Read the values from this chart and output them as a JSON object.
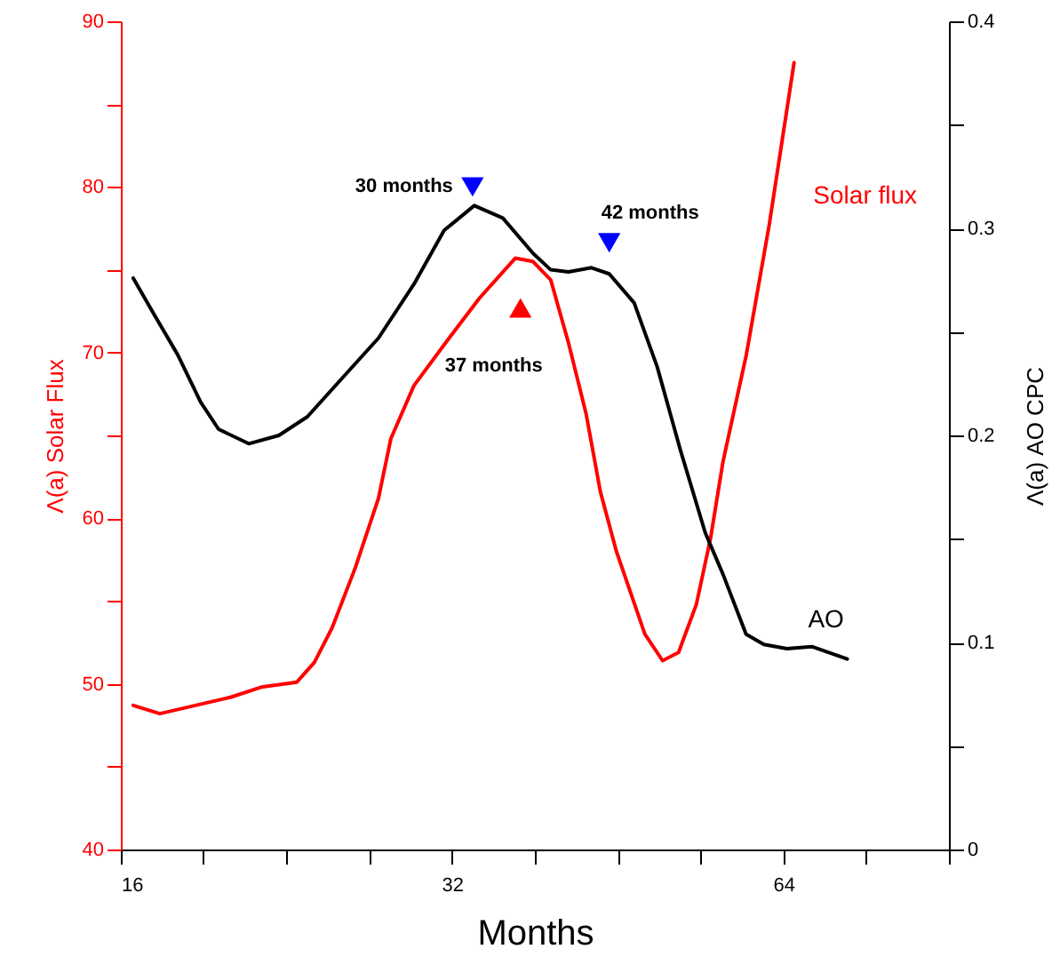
{
  "chart_data": {
    "type": "line",
    "xlabel": "Months",
    "ylabel": "Λ(a) Solar Flux",
    "y2label": "Λ(a) AO CPC",
    "log": "x",
    "grid": false,
    "xlim": [
      16,
      90.5
    ],
    "xticks": [
      16,
      {
        "value": 19.0,
        "label": null
      },
      {
        "value": 22.6,
        "label": null
      },
      {
        "value": 26.9,
        "label": null
      },
      32,
      {
        "value": 38.1,
        "label": null
      },
      {
        "value": 45.3,
        "label": null
      },
      {
        "value": 53.8,
        "label": null
      },
      64,
      {
        "value": 76.1,
        "label": null
      },
      {
        "value": 90.5,
        "label": null
      }
    ],
    "ylim": [
      40,
      90
    ],
    "yticks": [
      40,
      {
        "value": 45,
        "label": null
      },
      50,
      {
        "value": 55,
        "label": null
      },
      60,
      {
        "value": 65,
        "label": null
      },
      70,
      {
        "value": 75,
        "label": null
      },
      80,
      {
        "value": 85,
        "label": null
      },
      90
    ],
    "y2lim": [
      0,
      0.4
    ],
    "y2ticks": [
      0,
      {
        "value": 0.05,
        "label": null
      },
      0.1,
      {
        "value": 0.15,
        "label": null
      },
      0.2,
      {
        "value": 0.25,
        "label": null
      },
      0.3,
      {
        "value": 0.35,
        "label": null
      },
      0.4
    ],
    "series": [
      {
        "name": "Solar flux",
        "color": "#ff0000",
        "marker": "none",
        "x": [
          16.42,
          17.36,
          18.7,
          20.15,
          21.46,
          23.12,
          23.99,
          24.9,
          26.13,
          27.43,
          28.15,
          29.54,
          31.82,
          33.9,
          36.52,
          37.9,
          39.33,
          40.82,
          42.36,
          43.64,
          45.13,
          47.9,
          49.71,
          51.4,
          53.35,
          54.96,
          56.4,
          59.2,
          62.13,
          65.45
        ],
        "values": [
          48.7,
          48.2,
          48.7,
          49.2,
          49.8,
          50.1,
          51.3,
          53.4,
          57.0,
          61.2,
          64.8,
          68.0,
          70.9,
          73.3,
          75.7,
          75.5,
          74.4,
          70.6,
          66.3,
          61.6,
          58.0,
          53.0,
          51.4,
          51.9,
          54.8,
          58.8,
          63.4,
          69.8,
          77.7,
          87.5
        ]
      },
      {
        "name": "AO",
        "color": "#000000",
        "axis": "y2",
        "marker": "none",
        "x": [
          16.42,
          17.17,
          18.02,
          18.91,
          19.63,
          20.91,
          22.27,
          23.64,
          25.46,
          27.43,
          29.54,
          31.47,
          33.52,
          35.58,
          37.9,
          39.33,
          40.82,
          42.84,
          44.46,
          46.84,
          49.16,
          51.59,
          54.35,
          56.4,
          59.2,
          61.44,
          64.48,
          67.92,
          73.16
        ],
        "values": [
          0.276,
          0.258,
          0.239,
          0.216,
          0.203,
          0.196,
          0.2,
          0.209,
          0.228,
          0.247,
          0.273,
          0.299,
          0.311,
          0.305,
          0.288,
          0.28,
          0.279,
          0.281,
          0.278,
          0.264,
          0.233,
          0.193,
          0.153,
          0.133,
          0.104,
          0.099,
          0.097,
          0.098,
          0.092
        ]
      },
      {
        "type": "scatter",
        "color": "#0000ff",
        "axis": "y2",
        "marker": "triangle-down",
        "x": [
          33.4,
          44.46
        ],
        "values": [
          0.32,
          0.293
        ]
      },
      {
        "type": "scatter",
        "color": "#ff0000",
        "marker": "triangle",
        "x": [
          36.92
        ],
        "values": [
          72.7
        ]
      }
    ],
    "annotations": [
      {
        "text": "30 months",
        "x": 33.4,
        "y": 80.0
      },
      {
        "text": "42 months",
        "x": 44.46,
        "y": 76.6
      },
      {
        "text": "37 months",
        "x": 36.92,
        "y": 72.7
      }
    ]
  }
}
